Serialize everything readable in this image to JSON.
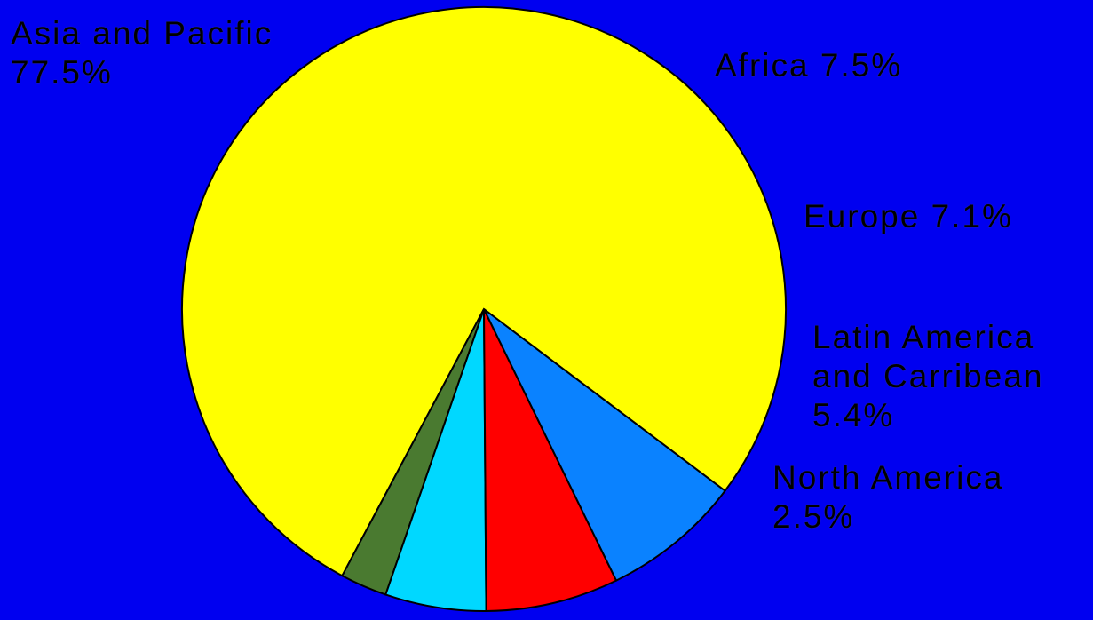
{
  "chart_data": {
    "type": "pie",
    "title": "",
    "slices": [
      {
        "label_lines": [
          "Asia and Pacific",
          "77.5%"
        ],
        "value": 77.5,
        "color": "#ffff00"
      },
      {
        "label_lines": [
          "North America",
          "2.5%"
        ],
        "value": 2.5,
        "color": "#4a7a30"
      },
      {
        "label_lines": [
          "Latin America",
          "and Carribean",
          "5.4%"
        ],
        "value": 5.4,
        "color": "#00d8ff"
      },
      {
        "label_lines": [
          "Europe 7.1%"
        ],
        "value": 7.1,
        "color": "#ff0000"
      },
      {
        "label_lines": [
          "Africa 7.5%"
        ],
        "value": 7.5,
        "color": "#0a82ff"
      }
    ],
    "background": "#0000f0"
  }
}
